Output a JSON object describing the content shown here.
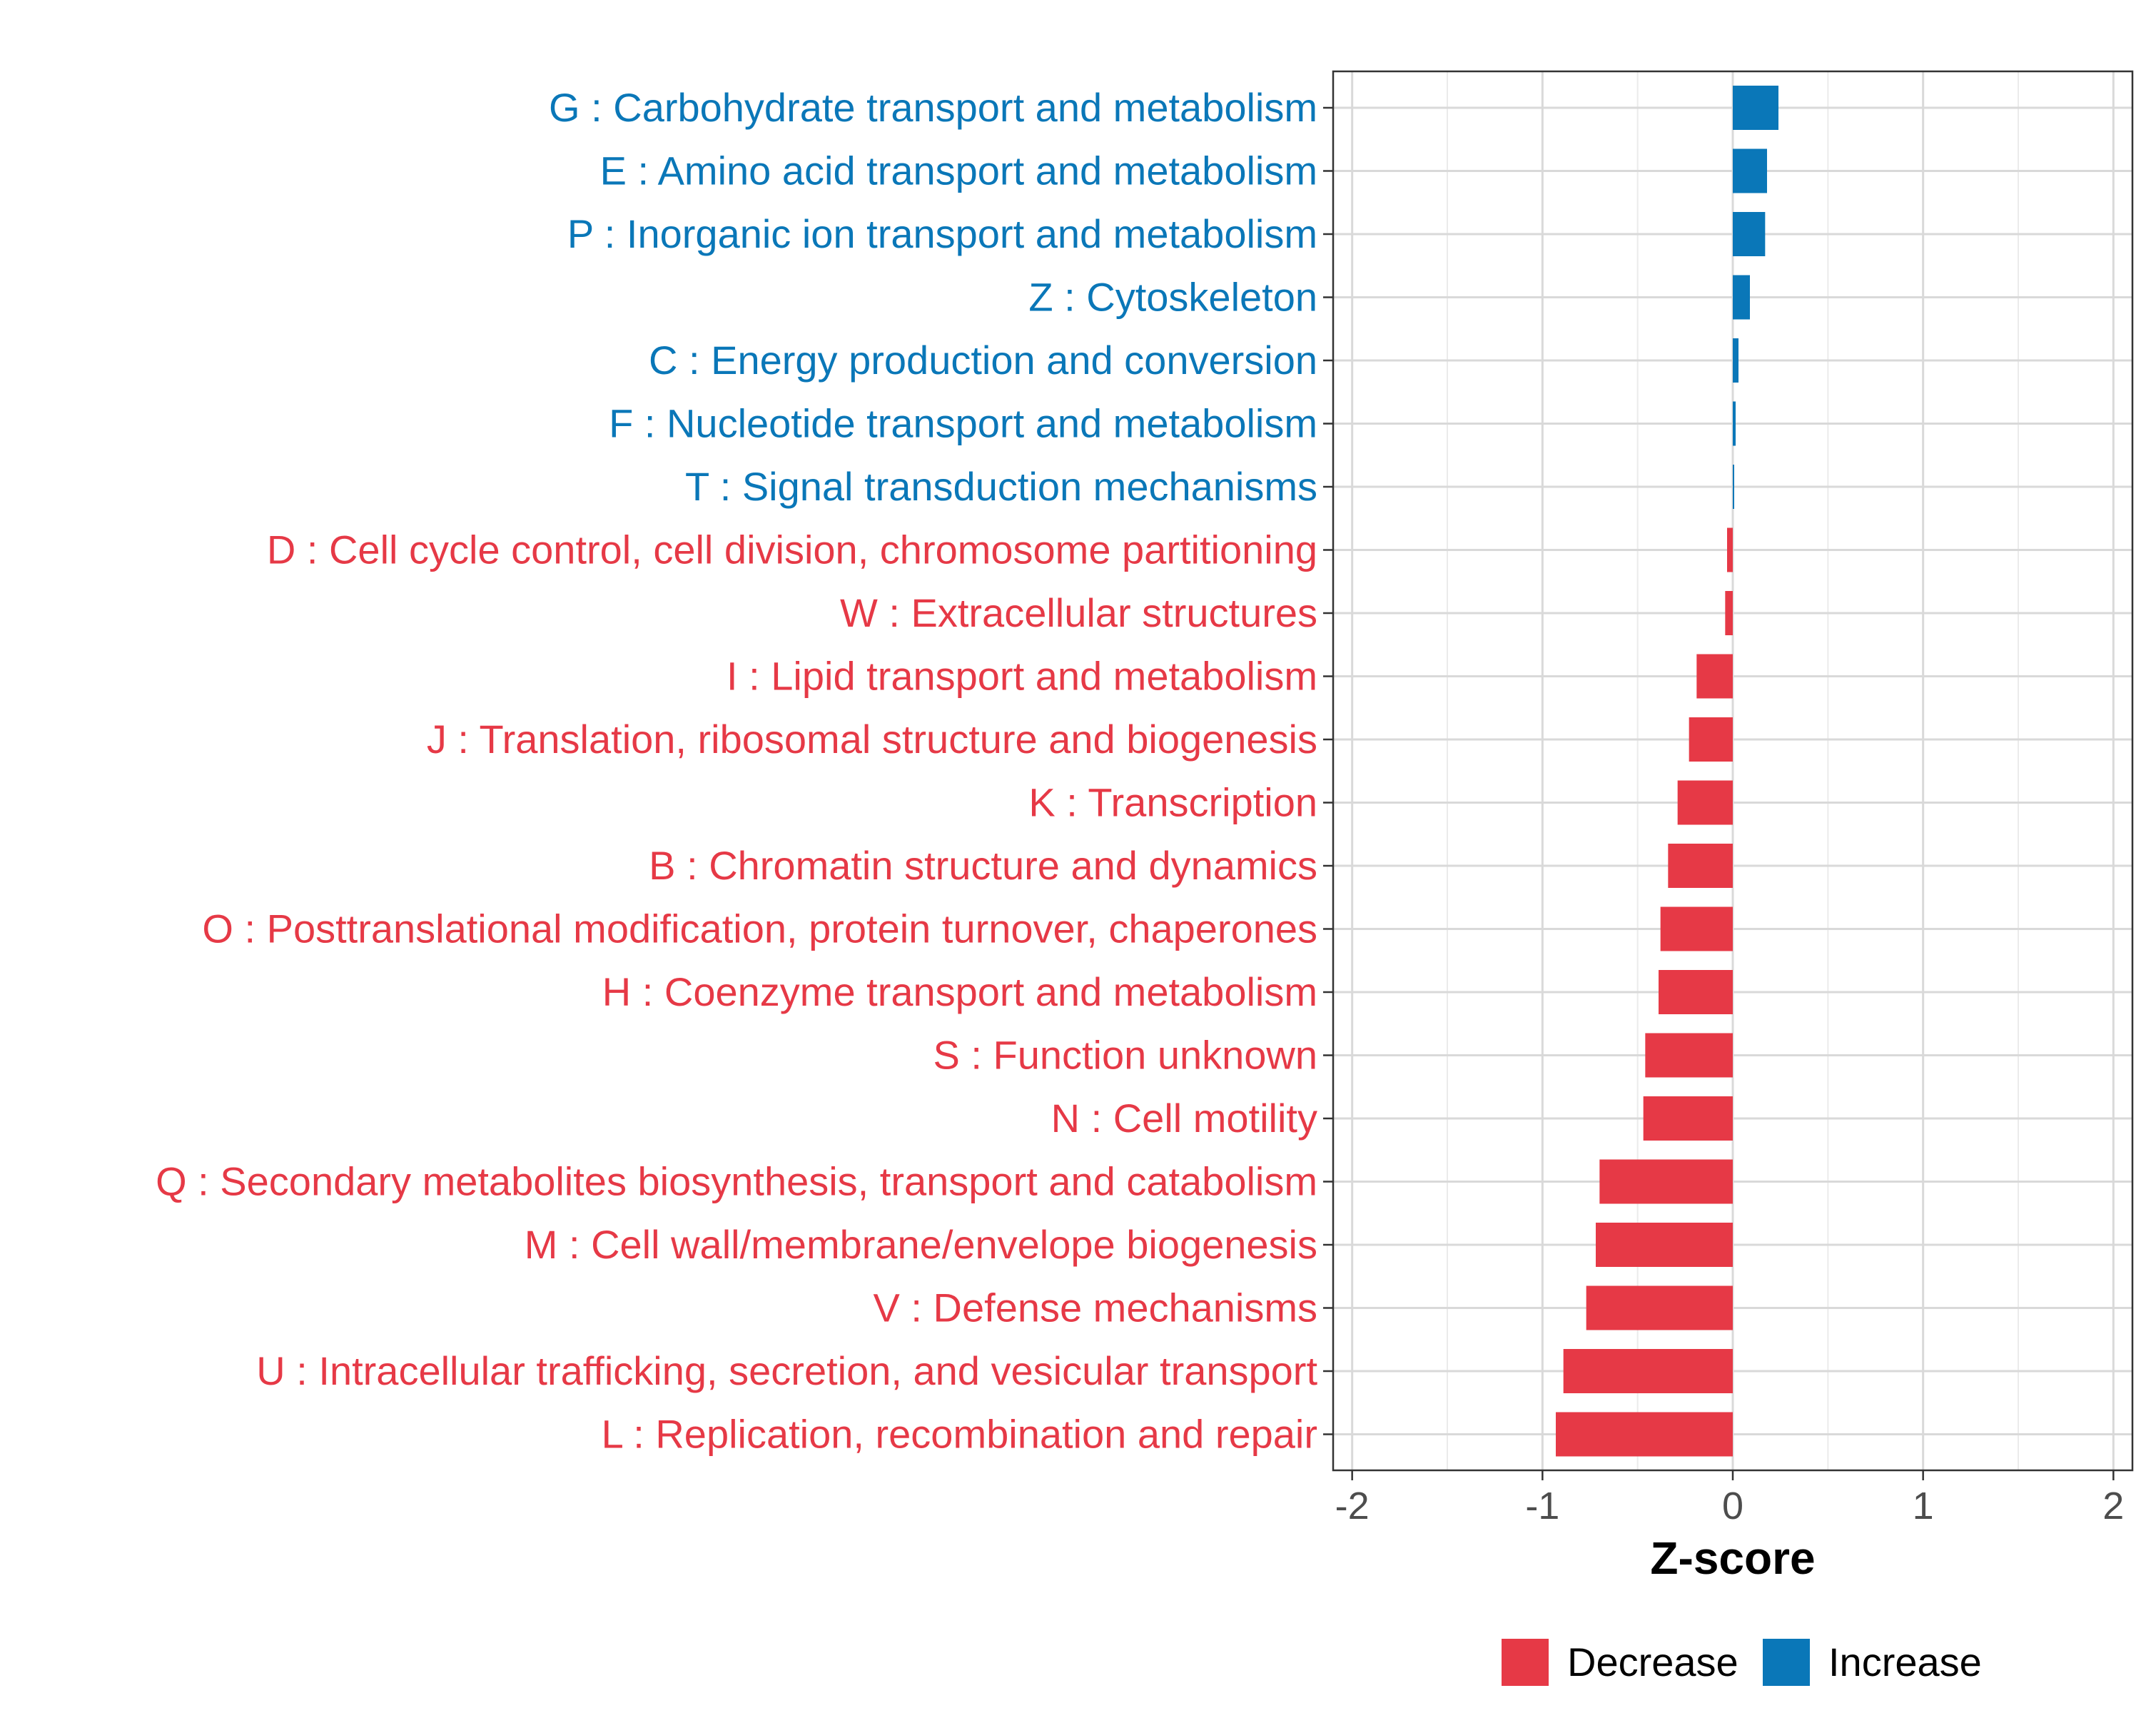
{
  "chart_data": {
    "type": "bar",
    "orientation": "horizontal",
    "title": "",
    "xlabel": "Z-score",
    "ylabel": "",
    "xlim": [
      -2.1,
      2.1
    ],
    "x_ticks": [
      -2,
      -1,
      0,
      1,
      2
    ],
    "x_tick_labels": [
      "-2",
      "-1",
      "0",
      "1",
      "2"
    ],
    "grid": true,
    "legend_position": "bottom",
    "colors": {
      "Decrease": "#e63946",
      "Increase": "#0a77b8"
    },
    "legend": [
      {
        "name": "Decrease",
        "color": "#e63946"
      },
      {
        "name": "Increase",
        "color": "#0a77b8"
      }
    ],
    "categories": [
      "G : Carbohydrate transport and metabolism",
      "E : Amino acid transport and metabolism",
      "P : Inorganic ion transport and metabolism",
      "Z : Cytoskeleton",
      "C : Energy production and conversion",
      "F : Nucleotide transport and metabolism",
      "T : Signal transduction mechanisms",
      "D : Cell cycle control, cell division, chromosome partitioning",
      "W : Extracellular structures",
      "I : Lipid transport and metabolism",
      "J : Translation, ribosomal structure and biogenesis",
      "K : Transcription",
      "B : Chromatin structure and dynamics",
      "O : Posttranslational modification, protein turnover, chaperones",
      "H : Coenzyme transport and metabolism",
      "S : Function unknown",
      "N : Cell motility",
      "Q : Secondary metabolites biosynthesis, transport and catabolism",
      "M : Cell wall/membrane/envelope biogenesis",
      "V : Defense mechanisms",
      "U : Intracellular trafficking, secretion, and vesicular transport",
      "L : Replication, recombination and repair"
    ],
    "values": [
      0.24,
      0.18,
      0.17,
      0.09,
      0.03,
      0.015,
      0.005,
      -0.03,
      -0.04,
      -0.19,
      -0.23,
      -0.29,
      -0.34,
      -0.38,
      -0.39,
      -0.46,
      -0.47,
      -0.7,
      -0.72,
      -0.77,
      -0.89,
      -0.93
    ],
    "groups": [
      "Increase",
      "Increase",
      "Increase",
      "Increase",
      "Increase",
      "Increase",
      "Increase",
      "Decrease",
      "Decrease",
      "Decrease",
      "Decrease",
      "Decrease",
      "Decrease",
      "Decrease",
      "Decrease",
      "Decrease",
      "Decrease",
      "Decrease",
      "Decrease",
      "Decrease",
      "Decrease",
      "Decrease"
    ]
  }
}
